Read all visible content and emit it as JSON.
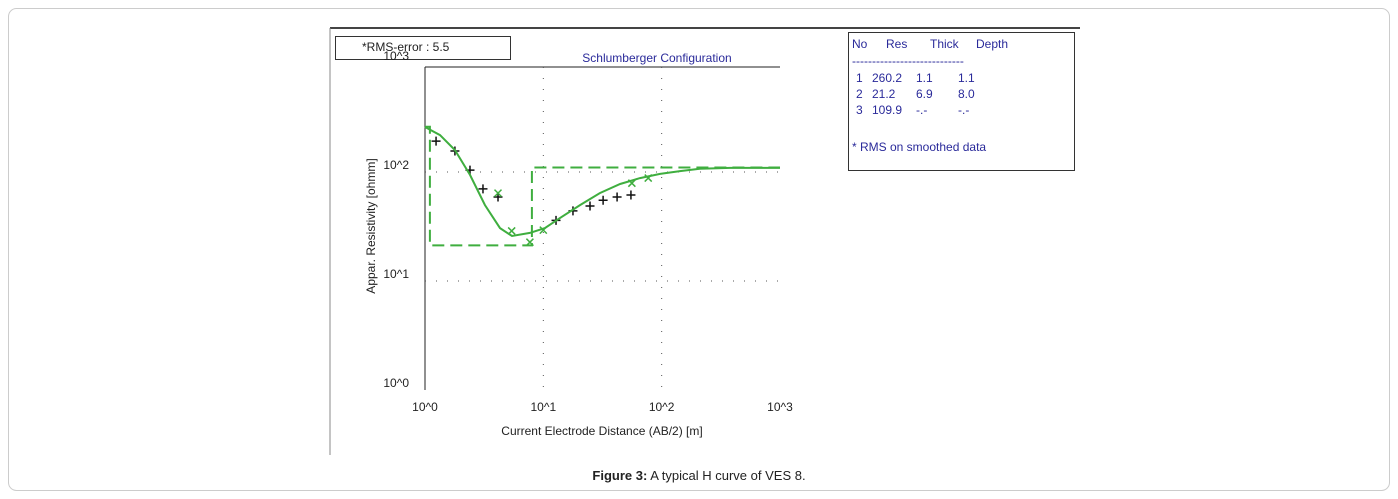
{
  "chart_data": {
    "type": "scatter",
    "title": "Schlumberger Configuration",
    "rms_label": "*RMS-error :  5.5",
    "x_label": "Current Electrode Distance (AB/2) [m]",
    "y_label": "Appar. Resistivity [ohmm]",
    "log_x": true,
    "log_y": true,
    "grid": true,
    "xlim": [
      1,
      1000
    ],
    "ylim": [
      1,
      1000
    ],
    "xticks": [
      {
        "value": 1,
        "label": "10^0"
      },
      {
        "value": 10,
        "label": "10^1"
      },
      {
        "value": 100,
        "label": "10^2"
      },
      {
        "value": 1000,
        "label": "10^3"
      }
    ],
    "yticks": [
      {
        "value": 1,
        "label": "10^0"
      },
      {
        "value": 10,
        "label": "10^1"
      },
      {
        "value": 100,
        "label": "10^2"
      },
      {
        "value": 1000,
        "label": "10^3"
      }
    ],
    "series": [
      {
        "marker": "plus",
        "color": "#111111",
        "x": [
          1.24,
          1.79,
          2.4,
          3.09,
          4.14,
          12.8,
          17.8,
          24.8,
          32,
          42,
          55
        ],
        "values": [
          192,
          156,
          104,
          70,
          59,
          36,
          44,
          48.8,
          55,
          59,
          61.5
        ]
      },
      {
        "marker": "cross",
        "color": "#3fae3f",
        "x": [
          4.14,
          5.4,
          7.7,
          10,
          56,
          77
        ],
        "values": [
          64,
          28.8,
          22.7,
          29.3,
          79,
          88
        ]
      },
      {
        "marker": "line",
        "style": "solid",
        "color": "#3fae3f",
        "x": [
          1,
          1.34,
          1.79,
          2.4,
          3.21,
          4.3,
          5.44,
          7.7,
          10.3,
          13.8,
          20.5,
          30,
          44.5,
          65.6,
          97,
          143,
          210,
          378,
          1000
        ],
        "values": [
          259,
          218,
          159,
          94,
          49.8,
          30.6,
          25.9,
          27.6,
          30.6,
          37.8,
          49.8,
          64,
          77.6,
          88,
          96,
          102,
          107,
          109,
          109
        ]
      },
      {
        "marker": "line",
        "style": "dashed",
        "color": "#3fae3f",
        "x": [
          1,
          1.1,
          1.1,
          8.0,
          8.0,
          1000
        ],
        "values": [
          260.2,
          260.2,
          21.2,
          21.2,
          109.9,
          109.9
        ]
      }
    ],
    "table": {
      "header": [
        "No",
        "Res",
        "Thick",
        "Depth"
      ],
      "rule": "----------------------------",
      "rows": [
        [
          "1",
          "260.2",
          "1.1",
          "1.1"
        ],
        [
          "2",
          "21.2",
          "6.9",
          "8.0"
        ],
        [
          "3",
          "109.9",
          "-.-",
          "-.-"
        ]
      ],
      "note": "* RMS on smoothed data"
    },
    "caption_label": "Figure 3:",
    "caption_text": " A typical H curve of VES 8."
  }
}
